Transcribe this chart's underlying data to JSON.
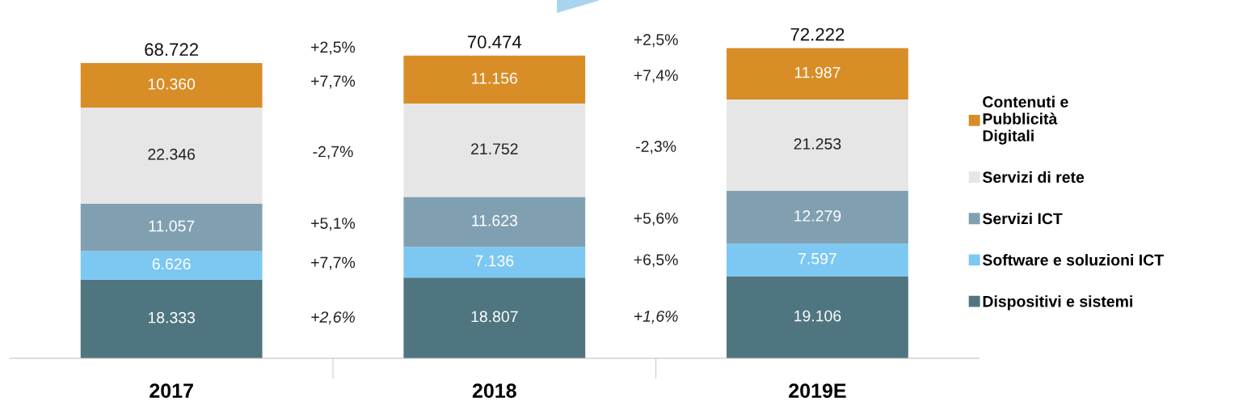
{
  "chart_data": {
    "type": "bar",
    "stacked": true,
    "categories": [
      "2017",
      "2018",
      "2019E"
    ],
    "series": [
      {
        "name": "Dispositivi e sistemi",
        "color": "#4f7580",
        "values": [
          18333,
          18807,
          19106
        ],
        "value_labels": [
          "18.333",
          "18.807",
          "19.106"
        ]
      },
      {
        "name": "Software e soluzioni ICT",
        "color": "#7cc8f2",
        "values": [
          6626,
          7136,
          7597
        ],
        "value_labels": [
          "6.626",
          "7.136",
          "7.597"
        ]
      },
      {
        "name": "Servizi ICT",
        "color": "#80a0b2",
        "values": [
          11057,
          11623,
          12279
        ],
        "value_labels": [
          "11.057",
          "11.623",
          "12.279"
        ]
      },
      {
        "name": "Servizi di rete",
        "color": "#e6e6e6",
        "values": [
          22346,
          21752,
          21253
        ],
        "value_labels": [
          "22.346",
          "21.752",
          "21.253"
        ]
      },
      {
        "name": "Contenuti e Pubblicità Digitali",
        "color": "#d98d26",
        "values": [
          10360,
          11156,
          11987
        ],
        "value_labels": [
          "10.360",
          "11.156",
          "11.987"
        ]
      }
    ],
    "totals": [
      "68.722",
      "70.474",
      "72.222"
    ],
    "annotations": [
      "+2,5%",
      "+7,7%",
      "-2,7%",
      "+5,1%",
      "+7,7%",
      "+2,6%",
      "+2,5%",
      "+7,4%",
      "-2,3%",
      "+5,6%",
      "+6,5%",
      "+1,6%"
    ],
    "legend": "right",
    "grid": false
  }
}
